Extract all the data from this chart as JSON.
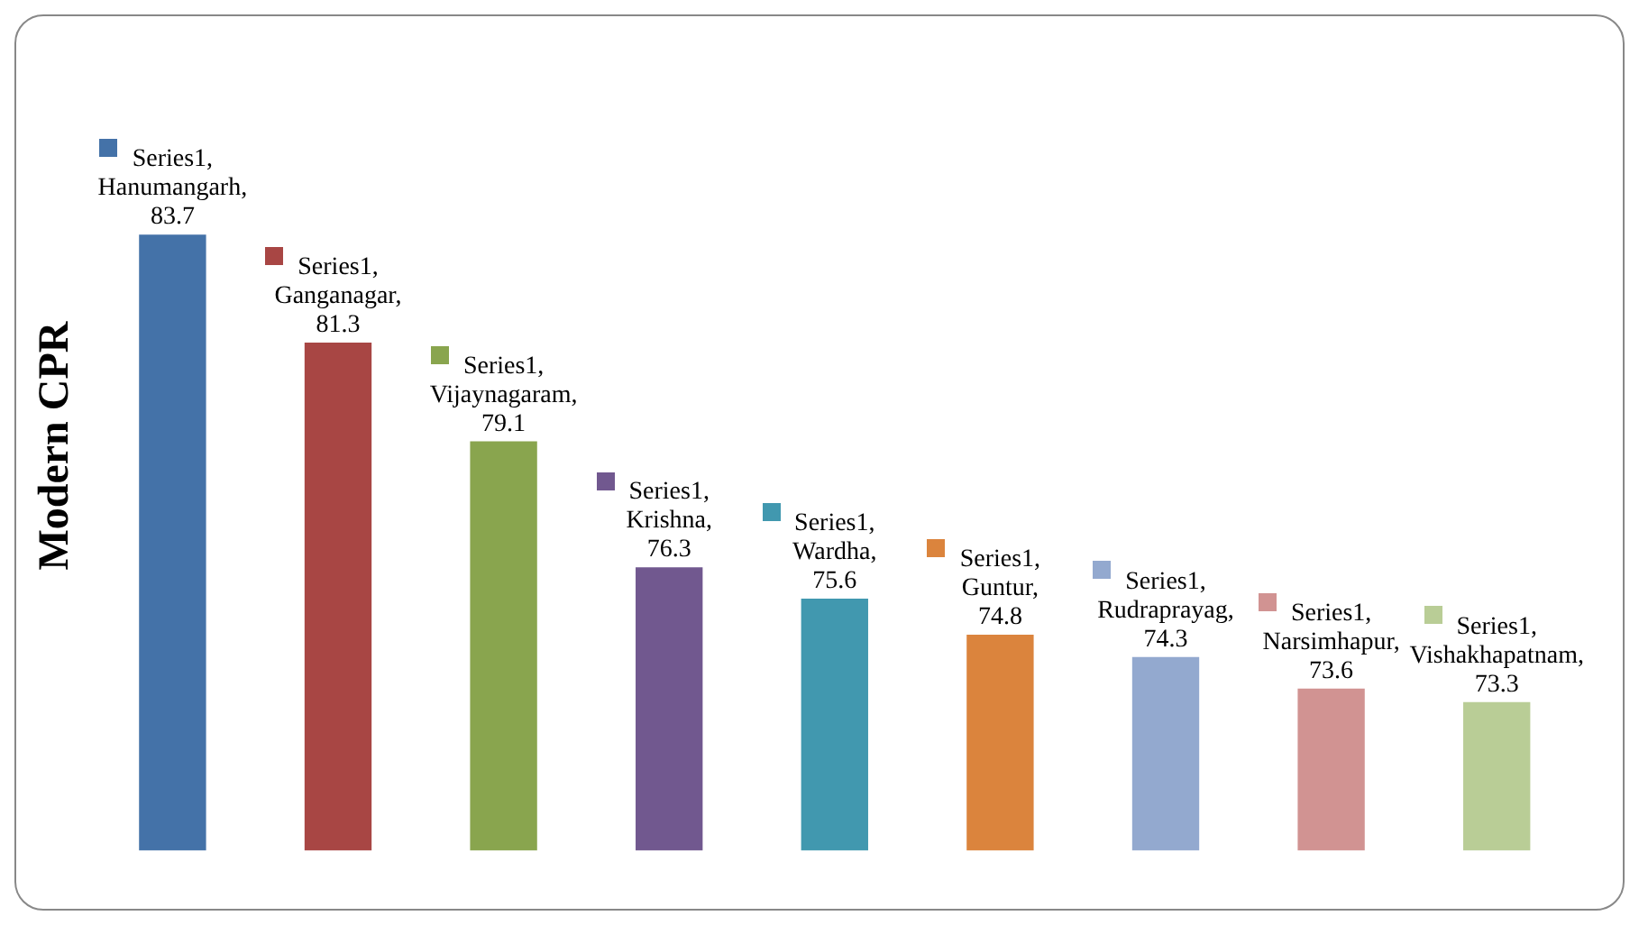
{
  "chart_data": {
    "type": "bar",
    "ylabel": "Modern CPR",
    "categories": [
      null,
      null,
      null,
      null,
      null,
      null,
      null,
      null,
      null
    ],
    "series": [
      {
        "colors": [
          "#4472a8",
          "#a84644",
          "#89a54e",
          "#71588f",
          "#4198af",
          "#db843d",
          "#93a9cf",
          "#d19392",
          "#b9cd96"
        ],
        "values": [
          83.7,
          81.3,
          79.1,
          76.3,
          75.6,
          74.8,
          74.3,
          73.6,
          73.3
        ],
        "value_labels": [
          "Series1, Hanumangarh, 83.7",
          "Series1, Ganganagar, 81.3",
          "Series1, Vijaynagaram, 79.1",
          "Series1, Krishna, 76.3",
          "Series1, Wardha, 75.6",
          "Series1, Guntur, 74.8",
          "Series1, Rudraprayag, 74.3",
          "Series1, Narsimhapur, 73.6",
          "Series1, Vishakhapatnam, 73.3"
        ]
      }
    ],
    "grid": false,
    "legend": false
  }
}
